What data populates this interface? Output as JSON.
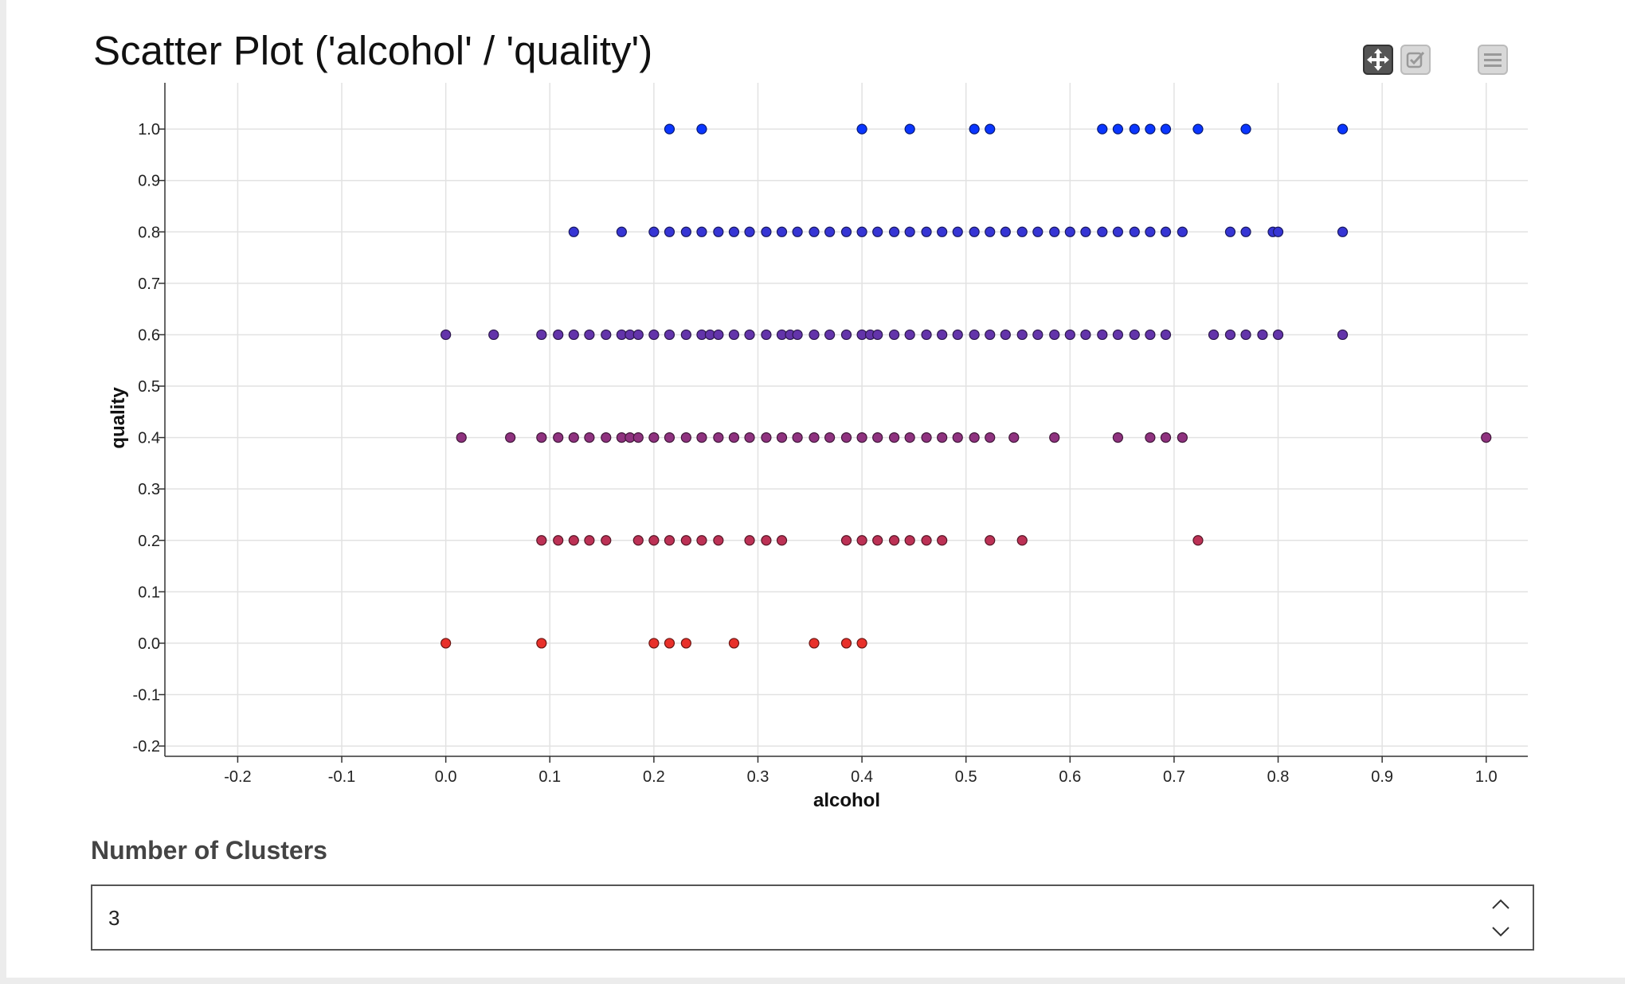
{
  "chart_data": {
    "type": "scatter",
    "title": "Scatter Plot ('alcohol' / 'quality')",
    "xlabel": "alcohol",
    "ylabel": "quality",
    "xlim": [
      -0.27,
      1.04
    ],
    "ylim": [
      -0.22,
      1.09
    ],
    "x_ticks": [
      "-0.2",
      "-0.1",
      "0.0",
      "0.1",
      "0.2",
      "0.3",
      "0.4",
      "0.5",
      "0.6",
      "0.7",
      "0.8",
      "0.9",
      "1.0"
    ],
    "y_ticks": [
      "-0.2",
      "-0.1",
      "0.0",
      "0.1",
      "0.2",
      "0.3",
      "0.4",
      "0.5",
      "0.6",
      "0.7",
      "0.8",
      "0.9",
      "1.0"
    ],
    "grid": true,
    "color_scale": {
      "low": "#e8302a",
      "high": "#0a36ff"
    },
    "series": [
      {
        "quality": 1.0,
        "x": [
          0.215,
          0.246,
          0.4,
          0.446,
          0.508,
          0.523,
          0.631,
          0.646,
          0.662,
          0.677,
          0.692,
          0.723,
          0.769,
          0.862
        ]
      },
      {
        "quality": 0.8,
        "x": [
          0.123,
          0.169,
          0.2,
          0.215,
          0.231,
          0.246,
          0.262,
          0.277,
          0.292,
          0.308,
          0.323,
          0.338,
          0.354,
          0.369,
          0.385,
          0.4,
          0.415,
          0.431,
          0.446,
          0.462,
          0.477,
          0.492,
          0.508,
          0.523,
          0.538,
          0.554,
          0.569,
          0.585,
          0.6,
          0.615,
          0.631,
          0.646,
          0.662,
          0.677,
          0.692,
          0.708,
          0.754,
          0.769,
          0.795,
          0.8,
          0.862
        ]
      },
      {
        "quality": 0.6,
        "x": [
          0.0,
          0.046,
          0.092,
          0.108,
          0.123,
          0.138,
          0.154,
          0.169,
          0.177,
          0.185,
          0.2,
          0.215,
          0.231,
          0.246,
          0.254,
          0.262,
          0.277,
          0.292,
          0.308,
          0.323,
          0.331,
          0.338,
          0.354,
          0.369,
          0.385,
          0.4,
          0.408,
          0.415,
          0.431,
          0.446,
          0.462,
          0.477,
          0.492,
          0.508,
          0.523,
          0.538,
          0.554,
          0.569,
          0.585,
          0.6,
          0.615,
          0.631,
          0.646,
          0.662,
          0.677,
          0.692,
          0.738,
          0.754,
          0.769,
          0.785,
          0.8,
          0.862
        ]
      },
      {
        "quality": 0.4,
        "x": [
          0.015,
          0.062,
          0.092,
          0.108,
          0.123,
          0.138,
          0.154,
          0.169,
          0.177,
          0.185,
          0.2,
          0.215,
          0.231,
          0.246,
          0.262,
          0.277,
          0.292,
          0.308,
          0.323,
          0.338,
          0.354,
          0.369,
          0.385,
          0.4,
          0.415,
          0.431,
          0.446,
          0.462,
          0.477,
          0.492,
          0.508,
          0.523,
          0.546,
          0.585,
          0.646,
          0.677,
          0.692,
          0.708,
          1.0
        ]
      },
      {
        "quality": 0.2,
        "x": [
          0.092,
          0.108,
          0.123,
          0.138,
          0.154,
          0.185,
          0.2,
          0.215,
          0.231,
          0.246,
          0.262,
          0.292,
          0.308,
          0.323,
          0.385,
          0.4,
          0.415,
          0.431,
          0.446,
          0.462,
          0.477,
          0.523,
          0.554,
          0.723
        ]
      },
      {
        "quality": 0.0,
        "x": [
          0.0,
          0.092,
          0.2,
          0.215,
          0.231,
          0.277,
          0.354,
          0.385,
          0.4
        ]
      }
    ]
  },
  "toolbar": {
    "pan_icon": "move-icon",
    "select_icon": "checkbox-icon",
    "menu_icon": "hamburger-menu-icon"
  },
  "control": {
    "label": "Number of Clusters",
    "value": "3"
  }
}
